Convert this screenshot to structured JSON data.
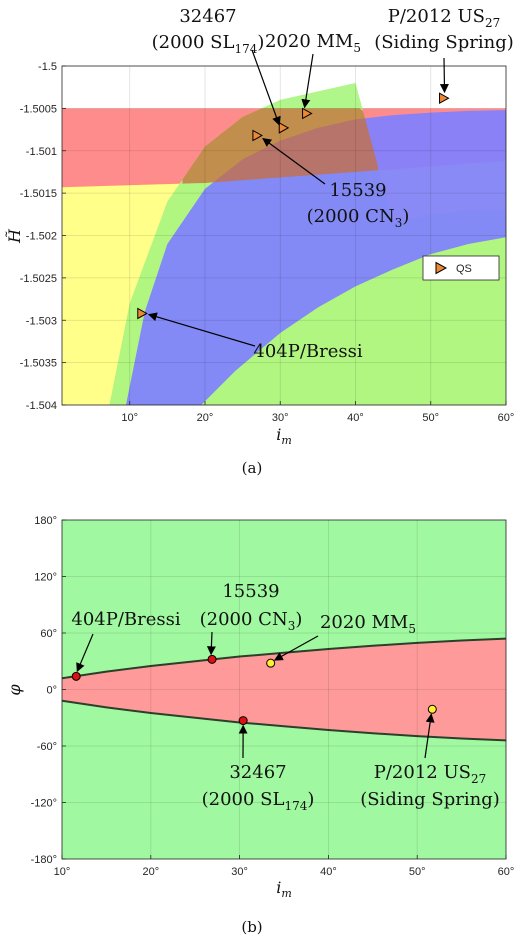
{
  "chart_data": [
    {
      "panel": "(a)",
      "type": "area",
      "caption": "(a)",
      "xlabel": "i_m",
      "ylabel": "H̃",
      "xlim": [
        1,
        60
      ],
      "ylim": [
        -1.504,
        -1.5
      ],
      "xticks": [
        10,
        20,
        30,
        40,
        50,
        60
      ],
      "xtick_labels": [
        "10°",
        "20°",
        "30°",
        "40°",
        "50°",
        "60°"
      ],
      "yticks": [
        -1.5,
        -1.5005,
        -1.501,
        -1.5015,
        -1.502,
        -1.5025,
        -1.503,
        -1.5035,
        -1.504
      ],
      "ytick_labels": [
        "-1.5",
        "-1.5005",
        "-1.501",
        "-1.5015",
        "-1.502",
        "-1.5025",
        "-1.503",
        "-1.5035",
        "-1.504"
      ],
      "grid": true,
      "legend_position": "right",
      "colors": {
        "red": "#ff8080",
        "yellow": "#ffff80",
        "green": "#aaf580",
        "blue": "#8080ff",
        "overlap": "#c86e3c",
        "marker": "#ee8833"
      },
      "regions": [
        {
          "color": "yellow",
          "upper": [
            [
              1,
              -1.50143
            ],
            [
              60,
              -1.50112
            ]
          ],
          "lower": [
            [
              1,
              -1.504
            ],
            [
              60,
              -1.504
            ]
          ]
        },
        {
          "color": "red",
          "upper": [
            [
              1,
              -1.5005
            ],
            [
              60,
              -1.5005
            ]
          ],
          "lower": [
            [
              1,
              -1.50143
            ],
            [
              20,
              -1.50138
            ],
            [
              40,
              -1.50125
            ],
            [
              60,
              -1.50112
            ]
          ]
        },
        {
          "color": "green",
          "upper": [
            [
              7.3,
              -1.504
            ],
            [
              10,
              -1.5028
            ],
            [
              15,
              -1.5016
            ],
            [
              20,
              -1.50095
            ],
            [
              25,
              -1.5006
            ],
            [
              30,
              -1.5004
            ],
            [
              35,
              -1.5003
            ],
            [
              40,
              -1.5002
            ],
            [
              45,
              -1.50185
            ],
            [
              50,
              -1.50175
            ],
            [
              55,
              -1.5017
            ],
            [
              60,
              -1.5017
            ]
          ],
          "lower": [
            [
              9.5,
              -1.504
            ],
            [
              60,
              -1.504
            ]
          ]
        },
        {
          "color": "blue",
          "upper": [
            [
              9.5,
              -1.504
            ],
            [
              12,
              -1.5029
            ],
            [
              15,
              -1.5021
            ],
            [
              20,
              -1.50145
            ],
            [
              25,
              -1.5011
            ],
            [
              30,
              -1.50088
            ],
            [
              35,
              -1.50073
            ],
            [
              40,
              -1.50063
            ],
            [
              45,
              -1.50058
            ],
            [
              50,
              -1.50055
            ],
            [
              55,
              -1.50053
            ],
            [
              60,
              -1.50052
            ]
          ],
          "lower": [
            [
              19.5,
              -1.504
            ],
            [
              24,
              -1.5036
            ],
            [
              30,
              -1.50315
            ],
            [
              35,
              -1.50285
            ],
            [
              40,
              -1.5026
            ],
            [
              45,
              -1.5024
            ],
            [
              50,
              -1.50222
            ],
            [
              55,
              -1.5021
            ],
            [
              60,
              -1.50202
            ]
          ]
        }
      ],
      "series": [
        {
          "name": "QS",
          "marker": "triangle-right",
          "points": [
            {
              "x": 11.6,
              "y": -1.50292,
              "label": "404P/Bressi"
            },
            {
              "x": 26.9,
              "y": -1.50082,
              "label": "15539 (2000 CN3)"
            },
            {
              "x": 30.4,
              "y": -1.50073,
              "label": "32467 (2000 SL174)"
            },
            {
              "x": 33.5,
              "y": -1.50056,
              "label": "2020 MM5"
            },
            {
              "x": 51.7,
              "y": -1.50038,
              "label": "P/2012 US27 (Siding Spring)"
            }
          ]
        }
      ],
      "legend": [
        {
          "label": "QS"
        }
      ],
      "annotations": [
        {
          "target": "32467",
          "line1": "32467",
          "line2a": "(2000 SL",
          "sub2": "174",
          "line2b": ")"
        },
        {
          "target": "2020 MM5",
          "line1a": "2020 MM",
          "sub1": "5"
        },
        {
          "target": "P/2012 US27",
          "line1a": "P/2012 US",
          "sub1": "27",
          "line2": "(Siding Spring)"
        },
        {
          "target": "15539",
          "line1": "15539",
          "line2a": "(2000 CN",
          "sub2": "3",
          "line2b": ")"
        },
        {
          "target": "404P/Bressi",
          "line1": "404P/Bressi"
        }
      ]
    },
    {
      "panel": "(b)",
      "type": "area",
      "caption": "(b)",
      "xlabel": "i_m",
      "ylabel": "φ",
      "xlim": [
        10,
        60
      ],
      "ylim": [
        -180,
        180
      ],
      "xticks": [
        10,
        20,
        30,
        40,
        50,
        60
      ],
      "xtick_labels": [
        "10°",
        "20°",
        "30°",
        "40°",
        "50°",
        "60°"
      ],
      "yticks": [
        -180,
        -120,
        -60,
        0,
        60,
        120,
        180
      ],
      "ytick_labels": [
        "-180°",
        "-120°",
        "-60°",
        "0°",
        "60°",
        "120°",
        "180°"
      ],
      "grid": true,
      "colors": {
        "background": "#a0f8a0",
        "band": "#ff9a9a",
        "boundary": "#2b3f2b",
        "red_marker": "#dd1111",
        "yellow_marker": "#ffee33"
      },
      "boundary_upper": [
        [
          10,
          12
        ],
        [
          15,
          19
        ],
        [
          20,
          25
        ],
        [
          25,
          30
        ],
        [
          30,
          35
        ],
        [
          35,
          39
        ],
        [
          40,
          43
        ],
        [
          45,
          46.5
        ],
        [
          50,
          49.5
        ],
        [
          55,
          52
        ],
        [
          60,
          54
        ]
      ],
      "boundary_lower": [
        [
          10,
          -12
        ],
        [
          15,
          -19
        ],
        [
          20,
          -25
        ],
        [
          25,
          -30
        ],
        [
          30,
          -35
        ],
        [
          35,
          -39
        ],
        [
          40,
          -43
        ],
        [
          45,
          -46.5
        ],
        [
          50,
          -49.5
        ],
        [
          55,
          -52
        ],
        [
          60,
          -54
        ]
      ],
      "points": [
        {
          "x": 11.6,
          "y": 14,
          "color": "red",
          "label": "404P/Bressi"
        },
        {
          "x": 26.9,
          "y": 32,
          "color": "red",
          "label": "15539 (2000 CN3)"
        },
        {
          "x": 33.5,
          "y": 28,
          "color": "yellow",
          "label": "2020 MM5"
        },
        {
          "x": 30.4,
          "y": -33,
          "color": "red",
          "label": "32467 (2000 SL174)"
        },
        {
          "x": 51.7,
          "y": -21,
          "color": "yellow",
          "label": "P/2012 US27 (Siding Spring)"
        }
      ],
      "annotations": [
        {
          "target": "15539",
          "line1": "15539",
          "line2a": "(2000 CN",
          "sub2": "3",
          "line2b": ")"
        },
        {
          "target": "404P/Bressi",
          "line1": "404P/Bressi"
        },
        {
          "target": "2020 MM5",
          "line1a": "2020 MM",
          "sub1": "5"
        },
        {
          "target": "32467",
          "line1": "32467",
          "line2a": "(2000 SL",
          "sub2": "174",
          "line2b": ")"
        },
        {
          "target": "P/2012 US27",
          "line1a": "P/2012 US",
          "sub1": "27",
          "line2": "(Siding Spring)"
        }
      ]
    }
  ]
}
